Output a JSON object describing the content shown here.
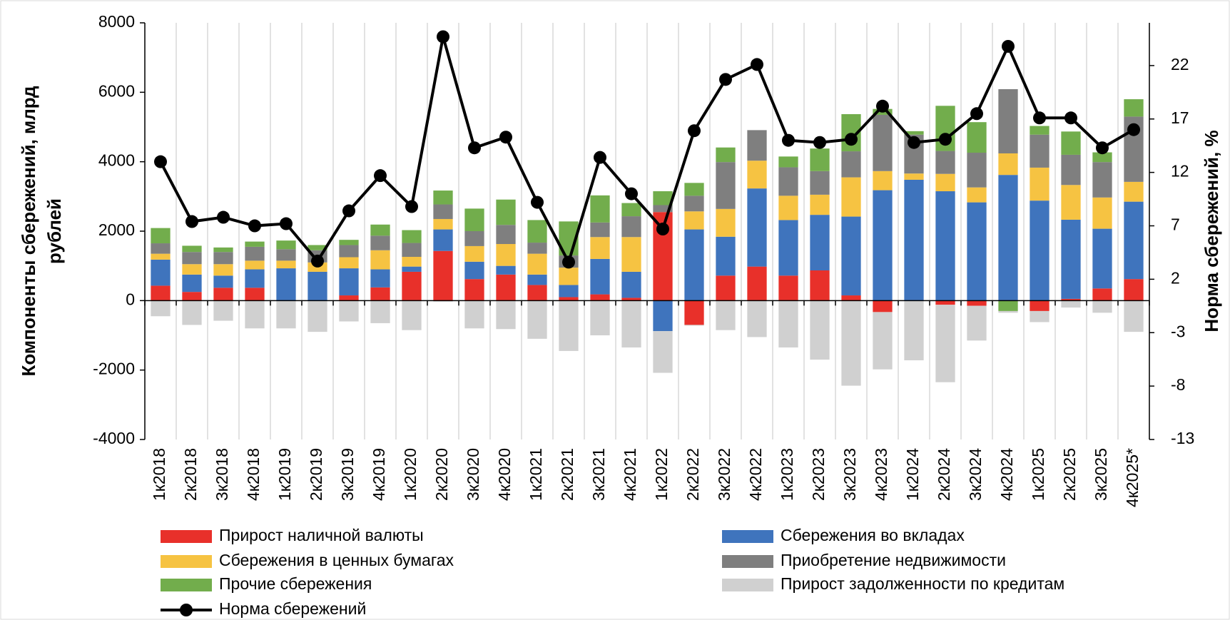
{
  "chart_data": {
    "type": "bar",
    "stacked": true,
    "ylabel": [
      "Компоненты сбережений, млрд",
      "рублей"
    ],
    "y2label": "Норма сбережений, %",
    "categories": [
      "1к2018",
      "2к2018",
      "3к2018",
      "4к2018",
      "1к2019",
      "2к2019",
      "3к2019",
      "4к2019",
      "1к2020",
      "2к2020",
      "3к2020",
      "4к2020",
      "1к2021",
      "2к2021",
      "3к2021",
      "4к2021",
      "1к2022",
      "2к2022",
      "3к2022",
      "4к2022",
      "1к2023",
      "2к2023",
      "3к2023",
      "4к2023",
      "1к2024",
      "2к2024",
      "3к2024",
      "4к2024",
      "1к2025",
      "2к2025",
      "3к2025",
      "4к2025*"
    ],
    "ylim": [
      -4000,
      8000
    ],
    "yticks": [
      -4000,
      -2000,
      0,
      2000,
      4000,
      6000,
      8000
    ],
    "y2lim": [
      -13,
      26
    ],
    "y2ticks": [
      -13,
      -8,
      -3,
      2,
      7,
      12,
      17,
      22
    ],
    "grid": true,
    "series": [
      {
        "name": "Прирост наличной валюты",
        "color": "#e8302a",
        "values": [
          430,
          250,
          370,
          370,
          0,
          0,
          150,
          380,
          830,
          1430,
          620,
          750,
          450,
          100,
          180,
          80,
          2550,
          -700,
          720,
          980,
          720,
          870,
          150,
          -330,
          0,
          -120,
          -150,
          0,
          -300,
          50,
          350,
          620
        ]
      },
      {
        "name": "Сбережения во вкладах",
        "color": "#3f74bd",
        "values": [
          750,
          500,
          350,
          530,
          930,
          830,
          780,
          520,
          150,
          620,
          500,
          250,
          300,
          350,
          1020,
          750,
          -880,
          2050,
          1120,
          2250,
          1600,
          1600,
          2270,
          3180,
          3480,
          3150,
          2830,
          3620,
          2880,
          2280,
          1720,
          2230
        ]
      },
      {
        "name": "Сбережения в ценных бумагах",
        "color": "#f6c342",
        "values": [
          170,
          300,
          330,
          250,
          220,
          270,
          320,
          550,
          280,
          300,
          450,
          630,
          600,
          500,
          630,
          1000,
          0,
          520,
          800,
          800,
          700,
          580,
          1130,
          550,
          180,
          500,
          430,
          620,
          950,
          1000,
          900,
          570
        ]
      },
      {
        "name": "Приобретение недвижимости",
        "color": "#7f7f7f",
        "values": [
          300,
          350,
          350,
          400,
          330,
          350,
          350,
          420,
          400,
          420,
          430,
          550,
          320,
          350,
          420,
          600,
          200,
          450,
          1350,
          880,
          820,
          680,
          750,
          1620,
          1120,
          660,
          1000,
          1850,
          950,
          870,
          1020,
          1880
        ]
      },
      {
        "name": "Прочие сбережения",
        "color": "#72ad4c",
        "values": [
          440,
          180,
          130,
          150,
          250,
          150,
          150,
          320,
          370,
          400,
          650,
          730,
          650,
          980,
          780,
          380,
          400,
          370,
          420,
          0,
          310,
          650,
          1070,
          170,
          100,
          1300,
          880,
          -300,
          250,
          670,
          280,
          500
        ]
      },
      {
        "name": "Прирост задолженности по кредитам",
        "color": "#d0d0d0",
        "values": [
          -450,
          -700,
          -580,
          -800,
          -800,
          -900,
          -600,
          -650,
          -850,
          -30,
          -800,
          -820,
          -1100,
          -1450,
          -1000,
          -1350,
          -1200,
          -20,
          -850,
          -1050,
          -1350,
          -1700,
          -2450,
          -1650,
          -1720,
          -2230,
          -1000,
          -50,
          -320,
          -200,
          -350,
          -900
        ]
      },
      {
        "name": "Норма сбережений",
        "color": "#000000",
        "type": "line",
        "axis": "y2",
        "values": [
          13.0,
          7.4,
          7.8,
          7.0,
          7.2,
          3.7,
          8.4,
          11.7,
          8.8,
          24.7,
          14.3,
          15.3,
          9.2,
          3.6,
          13.4,
          10.0,
          6.7,
          15.9,
          20.7,
          22.1,
          15.0,
          14.8,
          15.1,
          18.2,
          14.8,
          15.1,
          17.5,
          23.8,
          17.1,
          17.1,
          14.3,
          16.0
        ]
      }
    ]
  }
}
